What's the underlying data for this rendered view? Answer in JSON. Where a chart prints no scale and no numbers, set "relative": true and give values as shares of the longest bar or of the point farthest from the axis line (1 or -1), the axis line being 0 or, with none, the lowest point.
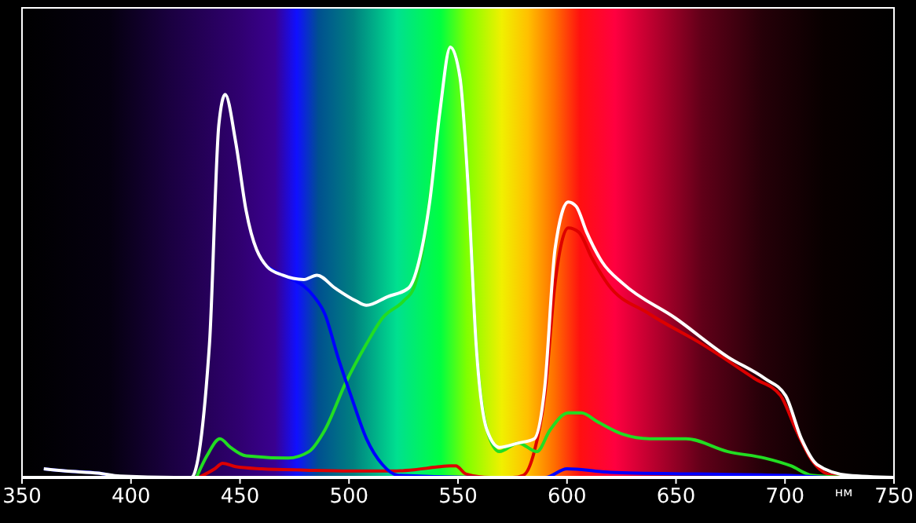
{
  "chart_data": {
    "type": "line",
    "relative": true,
    "xlabel": "нм",
    "xlim": [
      350,
      750
    ],
    "xticks": [
      350,
      400,
      450,
      500,
      550,
      600,
      650,
      700,
      750
    ],
    "tick_labels": "x",
    "grid": false,
    "marker": "none",
    "line_style": "solid",
    "series": [
      {
        "color": "#dd0000",
        "x": [
          431,
          438.4,
          442,
          448,
          460,
          480,
          500,
          520,
          530,
          540,
          546.5,
          549,
          553.7,
          565,
          575,
          580,
          585,
          590,
          594.5,
          600.6,
          605.4,
          611.4,
          618.6,
          637.8,
          661.9,
          686,
          698,
          705.1,
          712.3,
          719.5,
          730,
          750
        ],
        "values": [
          0,
          0.02,
          0.033,
          0.025,
          0.02,
          0.017,
          0.015,
          0.015,
          0.018,
          0.024,
          0.027,
          0.027,
          0.008,
          0,
          0,
          0.005,
          0.06,
          0.2,
          0.45,
          0.58,
          0.57,
          0.51,
          0.45,
          0.38,
          0.31,
          0.23,
          0.19,
          0.11,
          0.04,
          0.008,
          0,
          0
        ]
      },
      {
        "color": "#22dd22",
        "x": [
          430,
          434.8,
          440.8,
          445.6,
          452.8,
          472,
          481.6,
          488.9,
          498.5,
          508,
          515.3,
          525,
          529.7,
          534.5,
          541.7,
          546.5,
          550.9,
          554.7,
          558.3,
          563.3,
          569,
          577.7,
          586.2,
          592.2,
          600.6,
          606.6,
          613.8,
          625.8,
          637.8,
          654.6,
          673.8,
          690.7,
          702.7,
          712.3,
          730,
          750
        ],
        "values": [
          0,
          0.05,
          0.09,
          0.07,
          0.05,
          0.045,
          0.06,
          0.11,
          0.22,
          0.31,
          0.37,
          0.41,
          0.44,
          0.55,
          0.85,
          1,
          0.93,
          0.67,
          0.31,
          0.11,
          0.06,
          0.08,
          0.06,
          0.11,
          0.15,
          0.15,
          0.13,
          0.1,
          0.09,
          0.09,
          0.06,
          0.045,
          0.027,
          0.005,
          0,
          0
        ]
      },
      {
        "color": "#0000ff",
        "x": [
          360,
          370,
          385,
          395,
          430,
          462.4,
          469.6,
          474.4,
          484,
          488.9,
          494.9,
          500.9,
          508,
          515.3,
          522.5,
          560,
          590,
          600,
          620,
          660,
          700,
          720
        ],
        "values": [
          0.02,
          0.015,
          0.01,
          0,
          null,
          0.49,
          0.47,
          0.46,
          0.42,
          0.38,
          0.28,
          0.19,
          0.09,
          0.03,
          0.005,
          0,
          0,
          0.02,
          0.012,
          0.008,
          0.005,
          0
        ]
      },
      {
        "color": "#ffffff",
        "x": [
          360,
          370,
          385,
          395,
          420,
          427.6,
          436,
          440.3,
          443.2,
          448,
          452.8,
          462.4,
          469.6,
          479.2,
          485.3,
          493.6,
          503.3,
          508,
          517.7,
          527.3,
          532,
          537,
          541.7,
          546.5,
          550.9,
          554.7,
          558.3,
          563.3,
          569,
          577.7,
          585,
          589.8,
          594.5,
          600.6,
          604.2,
          609,
          616.2,
          625.8,
          649.8,
          673.8,
          690.7,
          700.3,
          707.5,
          714.7,
          729,
          750
        ],
        "values": [
          0.02,
          0.015,
          0.01,
          0.003,
          0,
          0,
          0.31,
          0.82,
          0.89,
          0.78,
          0.62,
          0.49,
          0.47,
          0.46,
          0.47,
          0.44,
          0.41,
          0.4,
          0.42,
          0.44,
          0.5,
          0.64,
          0.85,
          1,
          0.93,
          0.67,
          0.31,
          0.11,
          0.07,
          0.08,
          0.09,
          0.21,
          0.53,
          0.64,
          0.63,
          0.57,
          0.5,
          0.45,
          0.37,
          0.28,
          0.23,
          0.19,
          0.09,
          0.03,
          0.005,
          0
        ]
      }
    ]
  }
}
